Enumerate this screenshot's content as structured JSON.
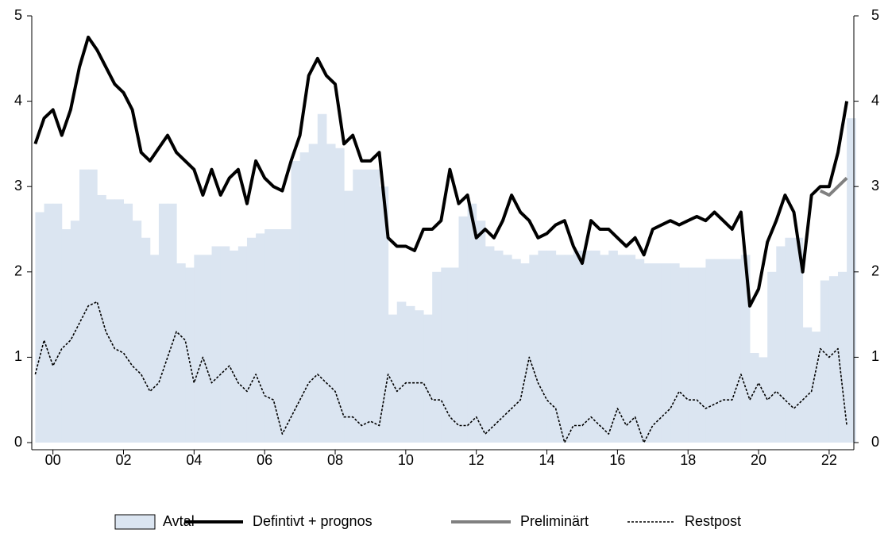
{
  "chart_data": {
    "type": "line",
    "x": [
      2000,
      2000.25,
      2000.5,
      2000.75,
      2001,
      2001.25,
      2001.5,
      2001.75,
      2002,
      2002.25,
      2002.5,
      2002.75,
      2003,
      2003.25,
      2003.5,
      2003.75,
      2004,
      2004.25,
      2004.5,
      2004.75,
      2005,
      2005.25,
      2005.5,
      2005.75,
      2006,
      2006.25,
      2006.5,
      2006.75,
      2007,
      2007.25,
      2007.5,
      2007.75,
      2008,
      2008.25,
      2008.5,
      2008.75,
      2009,
      2009.25,
      2009.5,
      2009.75,
      2010,
      2010.25,
      2010.5,
      2010.75,
      2011,
      2011.25,
      2011.5,
      2011.75,
      2012,
      2012.25,
      2012.5,
      2012.75,
      2013,
      2013.25,
      2013.5,
      2013.75,
      2014,
      2014.25,
      2014.5,
      2014.75,
      2015,
      2015.25,
      2015.5,
      2015.75,
      2016,
      2016.25,
      2016.5,
      2016.75,
      2017,
      2017.25,
      2017.5,
      2017.75,
      2018,
      2018.25,
      2018.5,
      2018.75,
      2019,
      2019.25,
      2019.5,
      2019.75,
      2020,
      2020.25,
      2020.5,
      2020.75,
      2021,
      2021.25,
      2021.5,
      2021.75,
      2022,
      2022.25,
      2022.5,
      2022.75,
      2023
    ],
    "series": [
      {
        "name": "Avtal",
        "color": "#dbe5f1",
        "style": "area",
        "values": [
          2.7,
          2.8,
          2.8,
          2.5,
          2.6,
          3.2,
          3.2,
          2.9,
          2.85,
          2.85,
          2.8,
          2.6,
          2.4,
          2.2,
          2.8,
          2.8,
          2.1,
          2.05,
          2.2,
          2.2,
          2.3,
          2.3,
          2.25,
          2.3,
          2.4,
          2.45,
          2.5,
          2.5,
          2.5,
          3.3,
          3.4,
          3.5,
          3.85,
          3.5,
          3.45,
          2.95,
          3.2,
          3.2,
          3.2,
          3.0,
          1.5,
          1.65,
          1.6,
          1.55,
          1.5,
          2.0,
          2.05,
          2.05,
          2.65,
          2.8,
          2.6,
          2.3,
          2.25,
          2.2,
          2.15,
          2.1,
          2.2,
          2.25,
          2.25,
          2.2,
          2.2,
          2.25,
          2.25,
          2.25,
          2.2,
          2.25,
          2.2,
          2.2,
          2.15,
          2.1,
          2.1,
          2.1,
          2.1,
          2.05,
          2.05,
          2.05,
          2.15,
          2.15,
          2.15,
          2.15,
          2.2,
          1.05,
          1.0,
          2.0,
          2.3,
          2.4,
          2.4,
          1.35,
          1.3,
          1.9,
          1.95,
          2.0,
          3.8
        ]
      },
      {
        "name": "Defintivt + prognos",
        "color": "#000000",
        "style": "solid",
        "values": [
          3.5,
          3.8,
          3.9,
          3.6,
          3.9,
          4.4,
          4.75,
          4.6,
          4.4,
          4.2,
          4.1,
          3.9,
          3.4,
          3.3,
          3.45,
          3.6,
          3.4,
          3.3,
          3.2,
          2.9,
          3.2,
          2.9,
          3.1,
          3.2,
          2.8,
          3.3,
          3.1,
          3.0,
          2.95,
          3.3,
          3.6,
          4.3,
          4.5,
          4.3,
          4.2,
          3.5,
          3.6,
          3.3,
          3.3,
          3.4,
          2.4,
          2.3,
          2.3,
          2.25,
          2.5,
          2.5,
          2.6,
          3.2,
          2.8,
          2.9,
          2.4,
          2.5,
          2.4,
          2.6,
          2.9,
          2.7,
          2.6,
          2.4,
          2.45,
          2.55,
          2.6,
          2.3,
          2.1,
          2.6,
          2.5,
          2.5,
          2.4,
          2.3,
          2.4,
          2.2,
          2.5,
          2.55,
          2.6,
          2.55,
          2.6,
          2.65,
          2.6,
          2.7,
          2.6,
          2.5,
          2.7,
          1.6,
          1.8,
          2.35,
          2.6,
          2.9,
          2.7,
          2.0,
          2.9,
          3.0,
          3.0,
          3.4,
          4.0
        ]
      },
      {
        "name": "Preliminärt",
        "color": "#808080",
        "style": "solid",
        "values": [
          null,
          null,
          null,
          null,
          null,
          null,
          null,
          null,
          null,
          null,
          null,
          null,
          null,
          null,
          null,
          null,
          null,
          null,
          null,
          null,
          null,
          null,
          null,
          null,
          null,
          null,
          null,
          null,
          null,
          null,
          null,
          null,
          null,
          null,
          null,
          null,
          null,
          null,
          null,
          null,
          null,
          null,
          null,
          null,
          null,
          null,
          null,
          null,
          null,
          null,
          null,
          null,
          null,
          null,
          null,
          null,
          null,
          null,
          null,
          null,
          null,
          null,
          null,
          null,
          null,
          null,
          null,
          null,
          null,
          null,
          null,
          null,
          null,
          null,
          null,
          null,
          null,
          null,
          null,
          null,
          null,
          null,
          null,
          null,
          null,
          null,
          null,
          null,
          null,
          2.95,
          2.9,
          3.0,
          3.1
        ]
      },
      {
        "name": "Restpost",
        "color": "#000000",
        "style": "dotted",
        "values": [
          0.8,
          1.2,
          0.9,
          1.1,
          1.2,
          1.4,
          1.6,
          1.65,
          1.3,
          1.1,
          1.05,
          0.9,
          0.8,
          0.6,
          0.7,
          1.0,
          1.3,
          1.2,
          0.7,
          1.0,
          0.7,
          0.8,
          0.9,
          0.7,
          0.6,
          0.8,
          0.55,
          0.5,
          0.1,
          0.3,
          0.5,
          0.7,
          0.8,
          0.7,
          0.6,
          0.3,
          0.3,
          0.2,
          0.25,
          0.2,
          0.8,
          0.6,
          0.7,
          0.7,
          0.7,
          0.5,
          0.5,
          0.3,
          0.2,
          0.2,
          0.3,
          0.1,
          0.2,
          0.3,
          0.4,
          0.5,
          1.0,
          0.7,
          0.5,
          0.4,
          0.0,
          0.2,
          0.2,
          0.3,
          0.2,
          0.1,
          0.4,
          0.2,
          0.3,
          0.0,
          0.2,
          0.3,
          0.4,
          0.6,
          0.5,
          0.5,
          0.4,
          0.45,
          0.5,
          0.5,
          0.8,
          0.5,
          0.7,
          0.5,
          0.6,
          0.5,
          0.4,
          0.5,
          0.6,
          1.1,
          1.0,
          1.1,
          0.2
        ]
      }
    ],
    "xlim": [
      1999.9,
      2023.2
    ],
    "xticks": [
      {
        "value": 2000.5,
        "label": "00"
      },
      {
        "value": 2002.5,
        "label": "02"
      },
      {
        "value": 2004.5,
        "label": "04"
      },
      {
        "value": 2006.5,
        "label": "06"
      },
      {
        "value": 2008.5,
        "label": "08"
      },
      {
        "value": 2010.5,
        "label": "10"
      },
      {
        "value": 2012.5,
        "label": "12"
      },
      {
        "value": 2014.5,
        "label": "14"
      },
      {
        "value": 2016.5,
        "label": "16"
      },
      {
        "value": 2018.5,
        "label": "18"
      },
      {
        "value": 2020.5,
        "label": "20"
      },
      {
        "value": 2022.5,
        "label": "22"
      }
    ],
    "ylim": [
      0,
      5
    ],
    "yticks": [
      0,
      1,
      2,
      3,
      4,
      5
    ],
    "y2lim": [
      0,
      5
    ],
    "y2ticks": [
      0,
      1,
      2,
      3,
      4,
      5
    ],
    "legend": "bottom"
  }
}
